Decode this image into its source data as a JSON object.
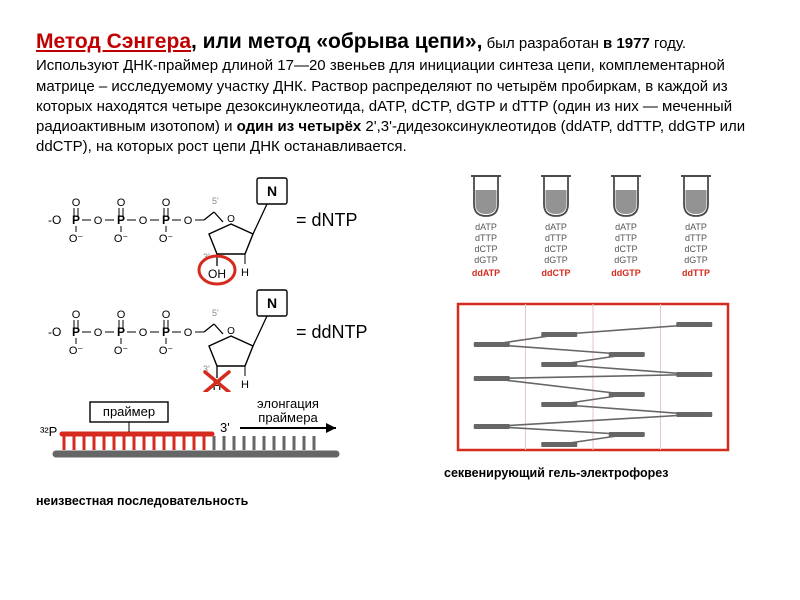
{
  "title": {
    "red_part": "Метод Сэнгера",
    "black_part": ", или метод «обрыва цепи»,",
    "rest": " был разработан ",
    "year": "в 1977",
    "rest2": " году. Используют ДНК-праймер длиной 17—20 звеньев для инициации синтеза цепи, комплементарной матрице – исследуемому участку ДНК. Раствор распределяют по четырём пробиркам, в каждой из которых находятся четыре дезоксинуклеотида, dATP, dCTP, dGTP и dTTP (один из них — меченный радиоактивным изотопом) и ",
    "bold2": "один из четырёх",
    "rest3": " 2',3'-дидезоксинуклеотидов (ddATP, ddTTP, ddGTP или ddCTP), на которых рост цепи ДНК останавливается."
  },
  "nucleotide": {
    "dNTP_label": "= dNTP",
    "ddNTP_label": "= ddNTP",
    "N_label": "N",
    "OH_label": "OH",
    "H_label": "H",
    "O_label": "O",
    "P_label": "P",
    "five_prime": "5'",
    "three_prime": "3'",
    "three_prime_x": "3'",
    "phosphate_chain": "-O—P—O—P—O—P—O—",
    "colors": {
      "black": "#000000",
      "red_circle": "#d52b1e",
      "red_x": "#d52b1e",
      "gray": "#888888"
    }
  },
  "primer_diagram": {
    "primer_label": "праймер",
    "p32_label": "³²P",
    "three_prime": "3'",
    "arrow_label_top": "элонгация",
    "arrow_label_bottom": "праймера",
    "caption": "неизвестная последовательность",
    "colors": {
      "red": "#d52b1e",
      "gray": "#666666",
      "black": "#000000"
    }
  },
  "tubes": {
    "rows": [
      "dATP",
      "dTTP",
      "dCTP",
      "dGTP"
    ],
    "dd_row": [
      "ddATP",
      "ddCTP",
      "ddGTP",
      "ddTTP"
    ],
    "colors": {
      "liquid": "#808080",
      "outline": "#4a4a4a",
      "text": "#555555",
      "dd_text": "#d52b1e"
    },
    "label_fontsize": 9
  },
  "gel": {
    "caption": "секвенирующий гель-электрофорез",
    "colors": {
      "border": "#d52b1e",
      "band": "#666666",
      "line": "#666666"
    },
    "lanes": 4,
    "bands": [
      [
        28,
        62,
        110
      ],
      [
        18,
        48,
        88,
        128
      ],
      [
        38,
        78,
        118
      ],
      [
        8,
        58,
        98
      ]
    ]
  }
}
